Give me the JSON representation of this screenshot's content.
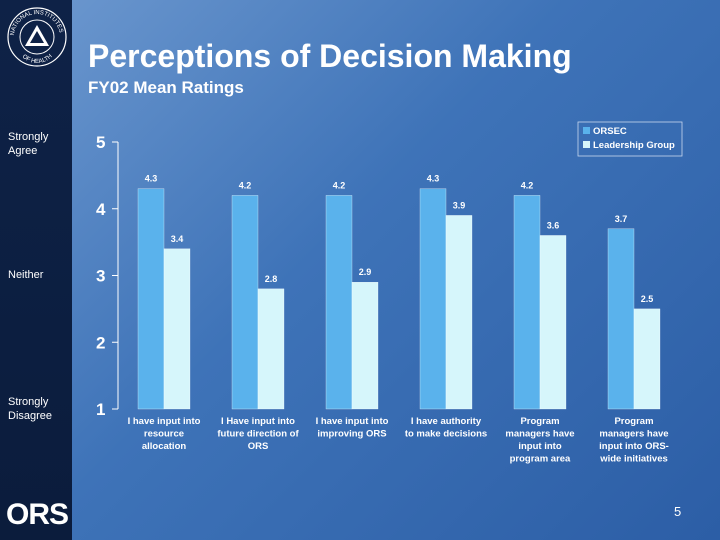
{
  "header": {
    "title": "Perceptions of Decision Making",
    "subtitle": "FY02 Mean Ratings"
  },
  "side_labels": {
    "top": [
      "Strongly",
      "Agree"
    ],
    "middle": [
      "Neither"
    ],
    "bottom": [
      "Strongly",
      "Disagree"
    ]
  },
  "logo": {
    "text": "ORS"
  },
  "page_number": "5",
  "colors": {
    "orsec": "#5ab2ec",
    "leadership": "#d6f6fb",
    "background": "#3e73b8",
    "sidebar": "#0e2247"
  },
  "chart_data": {
    "type": "bar",
    "title": "",
    "xlabel": "",
    "ylabel": "",
    "ylim": [
      1,
      5
    ],
    "yticks": [
      1,
      2,
      3,
      4,
      5
    ],
    "grid": false,
    "legend": "top-right",
    "categories": [
      [
        "I have input into",
        "resource",
        "allocation"
      ],
      [
        "I Have input into",
        "future direction of",
        "ORS"
      ],
      [
        "I have input into",
        "improving ORS"
      ],
      [
        "I have authority",
        "to make decisions"
      ],
      [
        "Program",
        "managers have",
        "input into",
        "program area"
      ],
      [
        "Program",
        "managers have",
        "input into ORS-",
        "wide initiatives"
      ]
    ],
    "series": [
      {
        "name": "ORSEC",
        "values": [
          4.3,
          4.2,
          4.2,
          4.3,
          4.2,
          3.7
        ]
      },
      {
        "name": "Leadership Group",
        "values": [
          3.4,
          2.8,
          2.9,
          3.9,
          3.6,
          2.5
        ]
      }
    ]
  }
}
